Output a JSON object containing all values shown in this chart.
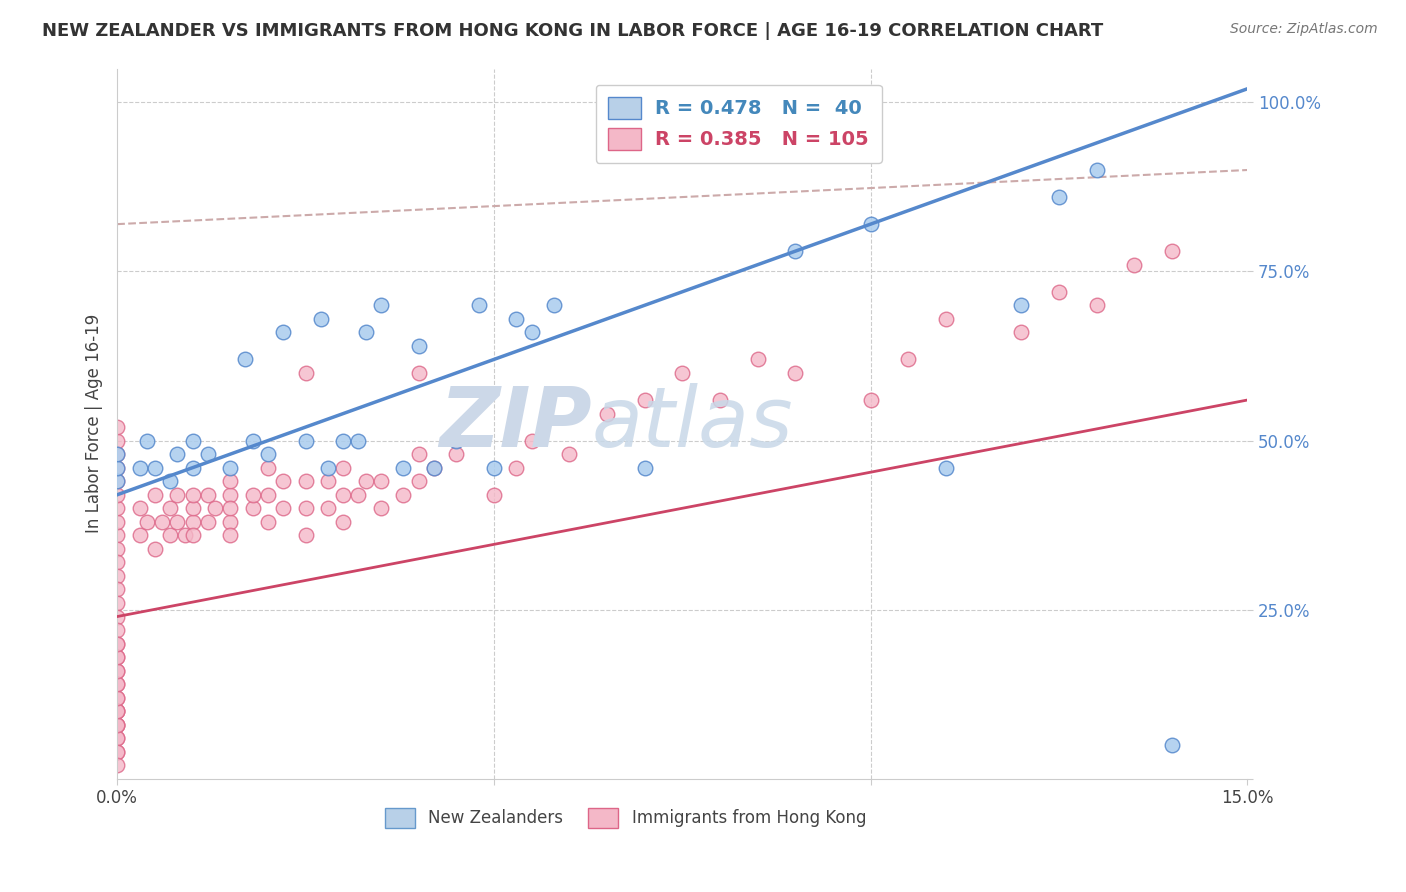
{
  "title": "NEW ZEALANDER VS IMMIGRANTS FROM HONG KONG IN LABOR FORCE | AGE 16-19 CORRELATION CHART",
  "source": "Source: ZipAtlas.com",
  "ylabel": "In Labor Force | Age 16-19",
  "xlim": [
    0.0,
    0.15
  ],
  "ylim": [
    0.0,
    1.05
  ],
  "legend_entries": [
    {
      "label": "R = 0.478   N =  40",
      "color": "#b8d0e8",
      "textcolor": "#4488bb"
    },
    {
      "label": "R = 0.385   N = 105",
      "color": "#f4b8c8",
      "textcolor": "#cc4466"
    }
  ],
  "bottom_legend": [
    {
      "label": "New Zealanders",
      "color": "#b8d0e8",
      "edgecolor": "#6699cc"
    },
    {
      "label": "Immigrants from Hong Kong",
      "color": "#f4b8c8",
      "edgecolor": "#dd6688"
    }
  ],
  "watermark_text": "ZIPAtlas",
  "blue_line_x": [
    0.0,
    0.15
  ],
  "blue_line_y": [
    0.42,
    1.02
  ],
  "pink_line_x": [
    0.0,
    0.15
  ],
  "pink_line_y": [
    0.24,
    0.56
  ],
  "dashed_line_x": [
    0.0,
    0.15
  ],
  "dashed_line_y": [
    0.8,
    0.9
  ],
  "blue_color": "#5588cc",
  "pink_color": "#cc4466",
  "blue_scatter_color": "#aaccee",
  "pink_scatter_color": "#f4b8c8",
  "blue_edge_color": "#5588cc",
  "pink_edge_color": "#dd6688",
  "grid_color": "#cccccc",
  "watermark_color": "#ccd8e8",
  "dashed_line_color": "#ccaaaa",
  "blue_scatter_x": [
    0.0,
    0.0,
    0.0,
    0.003,
    0.004,
    0.005,
    0.007,
    0.008,
    0.01,
    0.01,
    0.012,
    0.015,
    0.017,
    0.018,
    0.02,
    0.022,
    0.025,
    0.027,
    0.028,
    0.03,
    0.032,
    0.033,
    0.035,
    0.038,
    0.04,
    0.042,
    0.045,
    0.048,
    0.05,
    0.053,
    0.055,
    0.058,
    0.07,
    0.09,
    0.1,
    0.11,
    0.12,
    0.125,
    0.13,
    0.14
  ],
  "blue_scatter_y": [
    0.44,
    0.46,
    0.48,
    0.46,
    0.5,
    0.46,
    0.44,
    0.48,
    0.46,
    0.5,
    0.48,
    0.46,
    0.62,
    0.5,
    0.48,
    0.66,
    0.5,
    0.68,
    0.46,
    0.5,
    0.5,
    0.66,
    0.7,
    0.46,
    0.64,
    0.46,
    0.5,
    0.7,
    0.46,
    0.68,
    0.66,
    0.7,
    0.46,
    0.78,
    0.82,
    0.46,
    0.7,
    0.86,
    0.9,
    0.05
  ],
  "pink_scatter_x": [
    0.0,
    0.0,
    0.0,
    0.0,
    0.0,
    0.0,
    0.0,
    0.0,
    0.0,
    0.0,
    0.0,
    0.0,
    0.0,
    0.0,
    0.0,
    0.0,
    0.0,
    0.0,
    0.0,
    0.0,
    0.003,
    0.003,
    0.004,
    0.005,
    0.005,
    0.006,
    0.007,
    0.007,
    0.008,
    0.008,
    0.009,
    0.01,
    0.01,
    0.01,
    0.01,
    0.012,
    0.012,
    0.013,
    0.015,
    0.015,
    0.015,
    0.015,
    0.015,
    0.018,
    0.018,
    0.02,
    0.02,
    0.02,
    0.022,
    0.022,
    0.025,
    0.025,
    0.025,
    0.025,
    0.028,
    0.028,
    0.03,
    0.03,
    0.03,
    0.032,
    0.033,
    0.035,
    0.035,
    0.038,
    0.04,
    0.04,
    0.04,
    0.042,
    0.045,
    0.05,
    0.053,
    0.055,
    0.06,
    0.065,
    0.07,
    0.075,
    0.08,
    0.085,
    0.09,
    0.1,
    0.105,
    0.11,
    0.12,
    0.125,
    0.13,
    0.135,
    0.14,
    0.0,
    0.0,
    0.0,
    0.0,
    0.0,
    0.0,
    0.0,
    0.0,
    0.0,
    0.0,
    0.0,
    0.0,
    0.0,
    0.0,
    0.0,
    0.0,
    0.0
  ],
  "pink_scatter_y": [
    0.36,
    0.38,
    0.4,
    0.42,
    0.44,
    0.46,
    0.48,
    0.5,
    0.52,
    0.34,
    0.32,
    0.3,
    0.28,
    0.26,
    0.24,
    0.22,
    0.2,
    0.18,
    0.16,
    0.14,
    0.36,
    0.4,
    0.38,
    0.34,
    0.42,
    0.38,
    0.36,
    0.4,
    0.38,
    0.42,
    0.36,
    0.38,
    0.4,
    0.36,
    0.42,
    0.38,
    0.42,
    0.4,
    0.38,
    0.42,
    0.4,
    0.36,
    0.44,
    0.4,
    0.42,
    0.38,
    0.42,
    0.46,
    0.4,
    0.44,
    0.36,
    0.4,
    0.44,
    0.6,
    0.4,
    0.44,
    0.38,
    0.42,
    0.46,
    0.42,
    0.44,
    0.4,
    0.44,
    0.42,
    0.44,
    0.48,
    0.6,
    0.46,
    0.48,
    0.42,
    0.46,
    0.5,
    0.48,
    0.54,
    0.56,
    0.6,
    0.56,
    0.62,
    0.6,
    0.56,
    0.62,
    0.68,
    0.66,
    0.72,
    0.7,
    0.76,
    0.78,
    0.12,
    0.1,
    0.08,
    0.06,
    0.04,
    0.08,
    0.1,
    0.06,
    0.04,
    0.02,
    0.08,
    0.1,
    0.12,
    0.14,
    0.16,
    0.18,
    0.2
  ]
}
